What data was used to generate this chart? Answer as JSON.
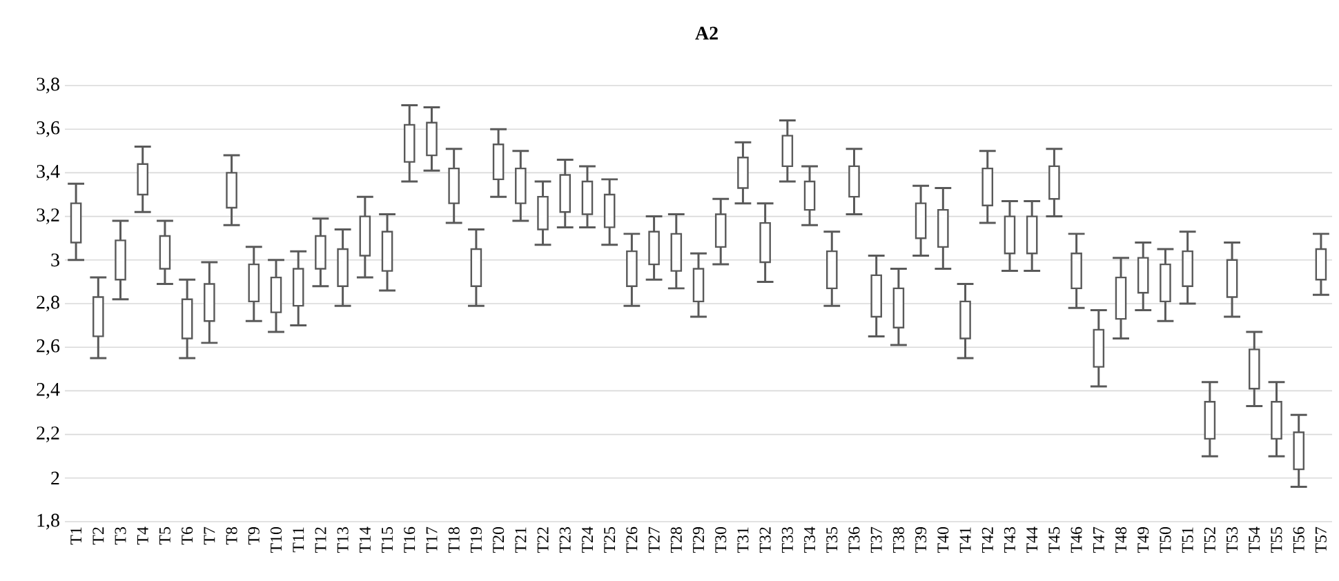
{
  "chart_data": {
    "type": "box",
    "title": "A2",
    "categories": [
      "T1",
      "T2",
      "T3",
      "T4",
      "T5",
      "T6",
      "T7",
      "T8",
      "T9",
      "T10",
      "T11",
      "T12",
      "T13",
      "T14",
      "T15",
      "T16",
      "T17",
      "T18",
      "T19",
      "T20",
      "T21",
      "T22",
      "T23",
      "T24",
      "T25",
      "T26",
      "T27",
      "T28",
      "T29",
      "T30",
      "T31",
      "T32",
      "T33",
      "T34",
      "T35",
      "T36",
      "T37",
      "T38",
      "T39",
      "T40",
      "T41",
      "T42",
      "T43",
      "T44",
      "T45",
      "T46",
      "T47",
      "T48",
      "T49",
      "T50",
      "T51",
      "T52",
      "T53",
      "T54",
      "T55",
      "T56",
      "T57"
    ],
    "boxes": [
      {
        "low": 3.0,
        "q1": 3.08,
        "q3": 3.26,
        "high": 3.35
      },
      {
        "low": 2.55,
        "q1": 2.65,
        "q3": 2.83,
        "high": 2.92
      },
      {
        "low": 2.82,
        "q1": 2.91,
        "q3": 3.09,
        "high": 3.18
      },
      {
        "low": 3.22,
        "q1": 3.3,
        "q3": 3.44,
        "high": 3.52
      },
      {
        "low": 2.89,
        "q1": 2.96,
        "q3": 3.11,
        "high": 3.18
      },
      {
        "low": 2.55,
        "q1": 2.64,
        "q3": 2.82,
        "high": 2.91
      },
      {
        "low": 2.62,
        "q1": 2.72,
        "q3": 2.89,
        "high": 2.99
      },
      {
        "low": 3.16,
        "q1": 3.24,
        "q3": 3.4,
        "high": 3.48
      },
      {
        "low": 2.72,
        "q1": 2.81,
        "q3": 2.98,
        "high": 3.06
      },
      {
        "low": 2.67,
        "q1": 2.76,
        "q3": 2.92,
        "high": 3.0
      },
      {
        "low": 2.7,
        "q1": 2.79,
        "q3": 2.96,
        "high": 3.04
      },
      {
        "low": 2.88,
        "q1": 2.96,
        "q3": 3.11,
        "high": 3.19
      },
      {
        "low": 2.79,
        "q1": 2.88,
        "q3": 3.05,
        "high": 3.14
      },
      {
        "low": 2.92,
        "q1": 3.02,
        "q3": 3.2,
        "high": 3.29
      },
      {
        "low": 2.86,
        "q1": 2.95,
        "q3": 3.13,
        "high": 3.21
      },
      {
        "low": 3.36,
        "q1": 3.45,
        "q3": 3.62,
        "high": 3.71
      },
      {
        "low": 3.41,
        "q1": 3.48,
        "q3": 3.63,
        "high": 3.7
      },
      {
        "low": 3.17,
        "q1": 3.26,
        "q3": 3.42,
        "high": 3.51
      },
      {
        "low": 2.79,
        "q1": 2.88,
        "q3": 3.05,
        "high": 3.14
      },
      {
        "low": 3.29,
        "q1": 3.37,
        "q3": 3.53,
        "high": 3.6
      },
      {
        "low": 3.18,
        "q1": 3.26,
        "q3": 3.42,
        "high": 3.5
      },
      {
        "low": 3.07,
        "q1": 3.14,
        "q3": 3.29,
        "high": 3.36
      },
      {
        "low": 3.15,
        "q1": 3.22,
        "q3": 3.39,
        "high": 3.46
      },
      {
        "low": 3.15,
        "q1": 3.21,
        "q3": 3.36,
        "high": 3.43
      },
      {
        "low": 3.07,
        "q1": 3.15,
        "q3": 3.3,
        "high": 3.37
      },
      {
        "low": 2.79,
        "q1": 2.88,
        "q3": 3.04,
        "high": 3.12
      },
      {
        "low": 2.91,
        "q1": 2.98,
        "q3": 3.13,
        "high": 3.2
      },
      {
        "low": 2.87,
        "q1": 2.95,
        "q3": 3.12,
        "high": 3.21
      },
      {
        "low": 2.74,
        "q1": 2.81,
        "q3": 2.96,
        "high": 3.03
      },
      {
        "low": 2.98,
        "q1": 3.06,
        "q3": 3.21,
        "high": 3.28
      },
      {
        "low": 3.26,
        "q1": 3.33,
        "q3": 3.47,
        "high": 3.54
      },
      {
        "low": 2.9,
        "q1": 2.99,
        "q3": 3.17,
        "high": 3.26
      },
      {
        "low": 3.36,
        "q1": 3.43,
        "q3": 3.57,
        "high": 3.64
      },
      {
        "low": 3.16,
        "q1": 3.23,
        "q3": 3.36,
        "high": 3.43
      },
      {
        "low": 2.79,
        "q1": 2.87,
        "q3": 3.04,
        "high": 3.13
      },
      {
        "low": 3.21,
        "q1": 3.29,
        "q3": 3.43,
        "high": 3.51
      },
      {
        "low": 2.65,
        "q1": 2.74,
        "q3": 2.93,
        "high": 3.02
      },
      {
        "low": 2.61,
        "q1": 2.69,
        "q3": 2.87,
        "high": 2.96
      },
      {
        "low": 3.02,
        "q1": 3.1,
        "q3": 3.26,
        "high": 3.34
      },
      {
        "low": 2.96,
        "q1": 3.06,
        "q3": 3.23,
        "high": 3.33
      },
      {
        "low": 2.55,
        "q1": 2.64,
        "q3": 2.81,
        "high": 2.89
      },
      {
        "low": 3.17,
        "q1": 3.25,
        "q3": 3.42,
        "high": 3.5
      },
      {
        "low": 2.95,
        "q1": 3.03,
        "q3": 3.2,
        "high": 3.27
      },
      {
        "low": 2.95,
        "q1": 3.03,
        "q3": 3.2,
        "high": 3.27
      },
      {
        "low": 3.2,
        "q1": 3.28,
        "q3": 3.43,
        "high": 3.51
      },
      {
        "low": 2.78,
        "q1": 2.87,
        "q3": 3.03,
        "high": 3.12
      },
      {
        "low": 2.42,
        "q1": 2.51,
        "q3": 2.68,
        "high": 2.77
      },
      {
        "low": 2.64,
        "q1": 2.73,
        "q3": 2.92,
        "high": 3.01
      },
      {
        "low": 2.77,
        "q1": 2.85,
        "q3": 3.01,
        "high": 3.08
      },
      {
        "low": 2.72,
        "q1": 2.81,
        "q3": 2.98,
        "high": 3.05
      },
      {
        "low": 2.8,
        "q1": 2.88,
        "q3": 3.04,
        "high": 3.13
      },
      {
        "low": 2.1,
        "q1": 2.18,
        "q3": 2.35,
        "high": 2.44
      },
      {
        "low": 2.74,
        "q1": 2.83,
        "q3": 3.0,
        "high": 3.08
      },
      {
        "low": 2.33,
        "q1": 2.41,
        "q3": 2.59,
        "high": 2.67
      },
      {
        "low": 2.1,
        "q1": 2.18,
        "q3": 2.35,
        "high": 2.44
      },
      {
        "low": 1.96,
        "q1": 2.04,
        "q3": 2.21,
        "high": 2.29
      },
      {
        "low": 2.84,
        "q1": 2.91,
        "q3": 3.05,
        "high": 3.12
      }
    ],
    "color": "#595959",
    "ylim": [
      1.8,
      3.8
    ],
    "yticks": [
      {
        "value": 1.8,
        "label": "1,8"
      },
      2,
      {
        "value": 2.2,
        "label": "2,2"
      },
      {
        "value": 2.4,
        "label": "2,4"
      },
      {
        "value": 2.6,
        "label": "2,6"
      },
      {
        "value": 2.8,
        "label": "2,8"
      },
      3,
      {
        "value": 3.2,
        "label": "3,2"
      },
      {
        "value": 3.4,
        "label": "3,4"
      },
      {
        "value": 3.6,
        "label": "3,6"
      },
      {
        "value": 3.8,
        "label": "3,8"
      }
    ],
    "grid": "y"
  }
}
